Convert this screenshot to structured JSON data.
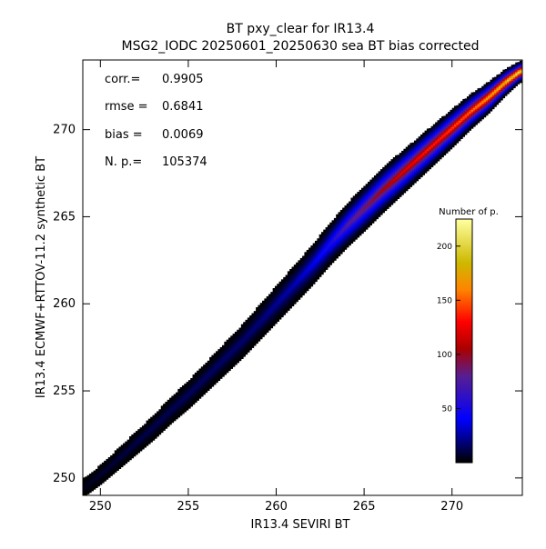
{
  "chart_data": {
    "type": "heatmap",
    "title": "BT pxy_clear for IR13.4",
    "subtitle": "MSG2_IODC 20250601_20250630 sea BT bias corrected",
    "xlabel": "IR13.4 SEVIRI BT",
    "ylabel": "IR13.4 ECMWF+RTTOV-11.2 synthetic BT",
    "xlim": [
      249,
      274
    ],
    "ylim": [
      249,
      274
    ],
    "x_ticks": [
      250,
      255,
      260,
      265,
      270
    ],
    "y_ticks": [
      250,
      255,
      260,
      265,
      270
    ],
    "grid": false,
    "stats": [
      {
        "label": "corr.=",
        "value": "0.9905"
      },
      {
        "label": "rmse =",
        "value": "0.6841"
      },
      {
        "label": "bias =",
        "value": "0.0069"
      },
      {
        "label": "N. p.=",
        "value": "105374"
      }
    ],
    "colorbar": {
      "title": "Number of p.",
      "min": 0,
      "max": 225,
      "ticks": [
        50,
        100,
        150,
        200
      ],
      "placement": "lower-right inside plot"
    },
    "density_profile": {
      "x": [
        249,
        250,
        251,
        252,
        253,
        254,
        255,
        256,
        257,
        258,
        259,
        260,
        261,
        262,
        263,
        264,
        265,
        266,
        267,
        268,
        269,
        270,
        271,
        272,
        273,
        273.8
      ],
      "center_y": [
        249.4,
        250.2,
        251.1,
        252.0,
        252.9,
        253.9,
        254.8,
        255.8,
        256.8,
        257.8,
        258.9,
        260.0,
        261.1,
        262.2,
        263.4,
        264.5,
        265.5,
        266.5,
        267.4,
        268.3,
        269.2,
        270.1,
        271.0,
        271.8,
        272.7,
        273.3
      ],
      "half_width": [
        0.5,
        0.55,
        0.6,
        0.65,
        0.7,
        0.75,
        0.8,
        0.85,
        0.9,
        0.95,
        1.0,
        1.05,
        1.1,
        1.15,
        1.2,
        1.25,
        1.3,
        1.3,
        1.25,
        1.2,
        1.15,
        1.1,
        1.0,
        0.9,
        0.75,
        0.6
      ],
      "peak_count": [
        5,
        8,
        10,
        12,
        13,
        14,
        15,
        16,
        17,
        18,
        20,
        25,
        30,
        40,
        55,
        80,
        95,
        110,
        125,
        135,
        140,
        150,
        160,
        180,
        200,
        215
      ]
    }
  }
}
